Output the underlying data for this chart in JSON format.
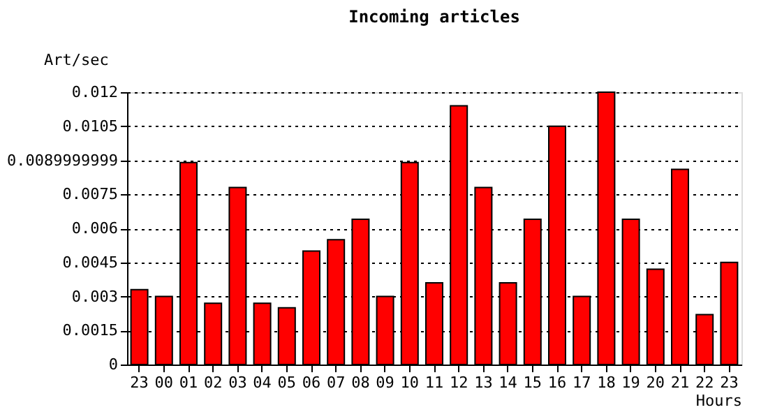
{
  "chart_data": {
    "type": "bar",
    "title": "Incoming articles",
    "xlabel": "Hours",
    "ylabel": "Art/sec",
    "categories": [
      "23",
      "00",
      "01",
      "02",
      "03",
      "04",
      "05",
      "06",
      "07",
      "08",
      "09",
      "10",
      "11",
      "12",
      "13",
      "14",
      "15",
      "16",
      "17",
      "18",
      "19",
      "20",
      "21",
      "22",
      "23"
    ],
    "series": [
      {
        "color": "#ff0000",
        "values": [
          0.0033,
          0.003,
          0.0089,
          0.0027,
          0.0078,
          0.0027,
          0.0025,
          0.005,
          0.0055,
          0.0064,
          0.003,
          0.0089,
          0.0036,
          0.0114,
          0.0078,
          0.0036,
          0.0064,
          0.0105,
          0.003,
          0.012,
          0.0064,
          0.0042,
          0.0086,
          0.0022,
          0.0045
        ]
      }
    ],
    "ylim": [
      0,
      0.012
    ],
    "yticks": [
      0,
      0.0015,
      0.003,
      0.0045,
      0.006,
      0.0075,
      0.0089999999,
      0.0105,
      0.012
    ],
    "grid": "y",
    "legend": false
  }
}
